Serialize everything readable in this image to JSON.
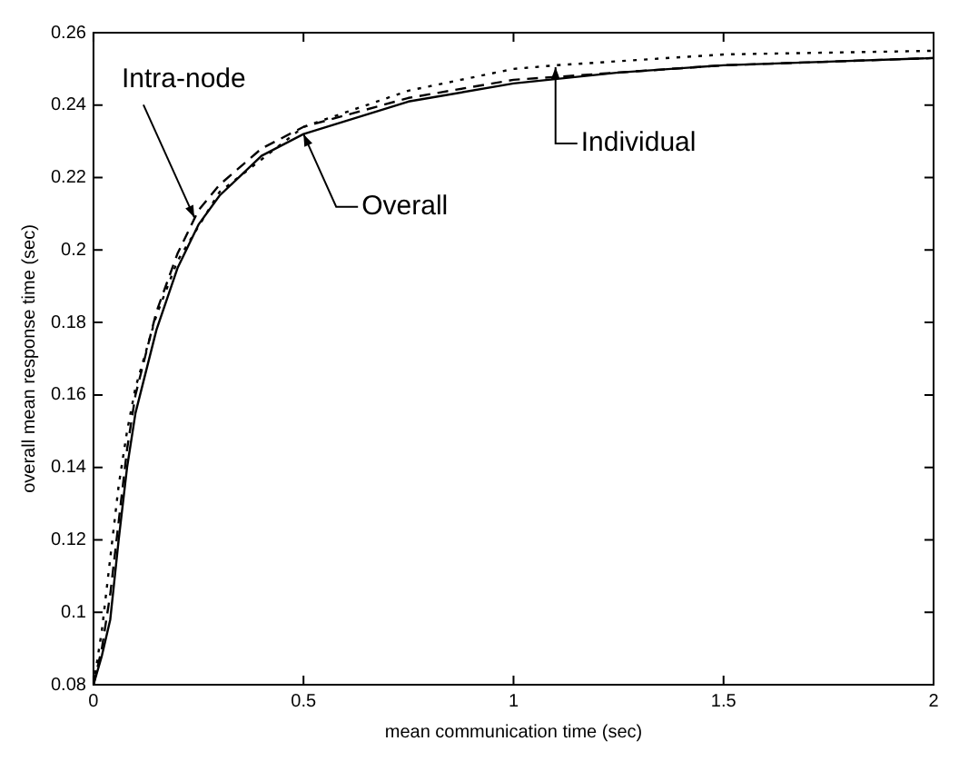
{
  "chart_data": {
    "type": "line",
    "xlabel": "mean communication time (sec)",
    "ylabel": "overall mean response time (sec)",
    "xlim": [
      0,
      2
    ],
    "xticks": [
      0,
      0.5,
      1,
      1.5,
      2
    ],
    "ylim": [
      0.08,
      0.26
    ],
    "yticks": [
      0.08,
      0.1,
      0.12,
      0.14,
      0.16,
      0.18,
      0.2,
      0.22,
      0.24,
      0.26
    ],
    "grid": false,
    "legend": false,
    "marker": "none",
    "series": [
      {
        "color": "#000000",
        "line_style": "solid",
        "x": [
          0,
          0.02,
          0.04,
          0.06,
          0.08,
          0.1,
          0.15,
          0.2,
          0.25,
          0.3,
          0.4,
          0.5,
          0.75,
          1,
          1.25,
          1.5,
          1.75,
          2
        ],
        "values": [
          0.08,
          0.088,
          0.098,
          0.12,
          0.14,
          0.155,
          0.178,
          0.195,
          0.207,
          0.215,
          0.226,
          0.232,
          0.241,
          0.246,
          0.249,
          0.251,
          0.252,
          0.253
        ]
      },
      {
        "color": "#000000",
        "line_style": "dashed",
        "x": [
          0,
          0.02,
          0.04,
          0.06,
          0.08,
          0.1,
          0.15,
          0.2,
          0.25,
          0.3,
          0.4,
          0.5,
          0.75,
          1,
          1.5,
          2
        ],
        "values": [
          0.08,
          0.09,
          0.105,
          0.125,
          0.145,
          0.16,
          0.183,
          0.199,
          0.211,
          0.218,
          0.228,
          0.234,
          0.242,
          0.247,
          0.251,
          0.253
        ]
      },
      {
        "color": "#000000",
        "line_style": "dotted",
        "x": [
          0,
          0.02,
          0.04,
          0.06,
          0.08,
          0.1,
          0.15,
          0.2,
          0.3,
          0.5,
          0.75,
          1,
          1.1,
          1.5,
          2
        ],
        "values": [
          0.08,
          0.095,
          0.115,
          0.135,
          0.15,
          0.162,
          0.182,
          0.197,
          0.216,
          0.234,
          0.244,
          0.25,
          0.251,
          0.254,
          0.255
        ]
      }
    ],
    "annotations": [
      {
        "text": "Intra-node",
        "x": 0.24,
        "y": 0.209
      },
      {
        "text": "Overall",
        "x": 0.5,
        "y": 0.232
      },
      {
        "text": "Individual",
        "x": 1.1,
        "y": 0.2505
      }
    ]
  }
}
